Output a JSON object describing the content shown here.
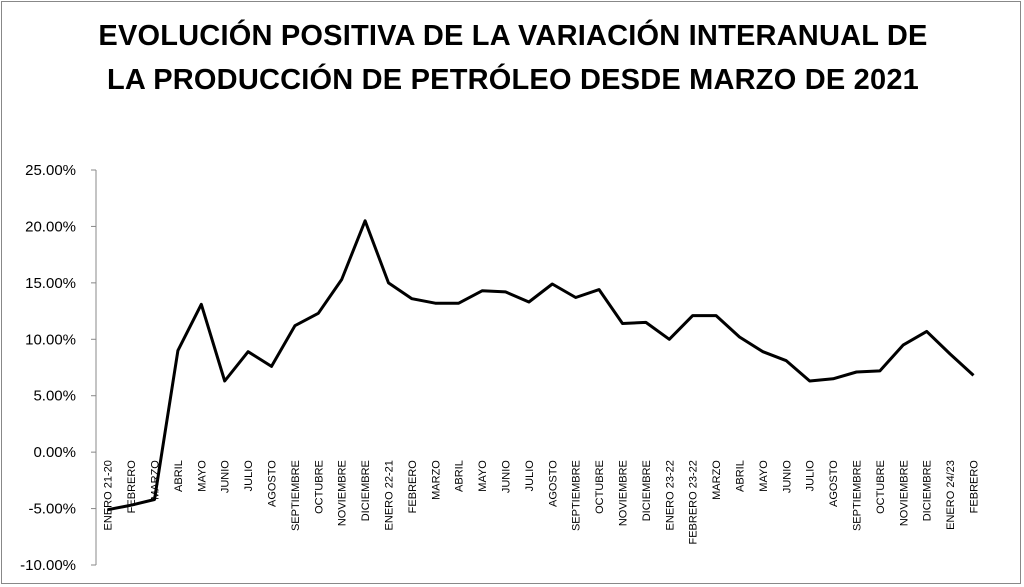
{
  "chart_data": {
    "type": "line",
    "title": "EVOLUCIÓN POSITIVA DE LA VARIACIÓN INTERANUAL DE LA PRODUCCIÓN DE PETRÓLEO DESDE MARZO DE 2021",
    "xlabel": "",
    "ylabel": "",
    "ylim": [
      -10,
      25
    ],
    "y_ticks": [
      "-10.00%",
      "-5.00%",
      "0.00%",
      "5.00%",
      "10.00%",
      "15.00%",
      "20.00%",
      "25.00%"
    ],
    "grid": false,
    "legend": "none",
    "line_color": "#000000",
    "categories": [
      "ENERO 21-20",
      "FEBRERO",
      "MARZO",
      "ABRIL",
      "MAYO",
      "JUNIO",
      "JULIO",
      "AGOSTO",
      "SEPTIEMBRE",
      "OCTUBRE",
      "NOVIEMBRE",
      "DICIEMBRE",
      "ENERO 22-21",
      "FEBRERO",
      "MARZO",
      "ABRIL",
      "MAYO",
      "JUNIO",
      "JULIO",
      "AGOSTO",
      "SEPTIEMBRE",
      "OCTUBRE",
      "NOVIEMBRE",
      "DICIEMBRE",
      "ENERO 23-22",
      "FEBRERO 23-22",
      "MARZO",
      "ABRIL",
      "MAYO",
      "JUNIO",
      "JULIO",
      "AGOSTO",
      "SEPTIEMBRE",
      "OCTUBRE",
      "NOVIEMBRE",
      "DICIEMBRE",
      "ENERO 24/23",
      "FEBRERO"
    ],
    "values": [
      -5.1,
      -4.7,
      -4.2,
      9.0,
      13.1,
      6.3,
      8.9,
      7.6,
      11.2,
      12.3,
      15.3,
      20.5,
      15.0,
      13.6,
      13.2,
      13.2,
      14.3,
      14.2,
      13.3,
      14.9,
      13.7,
      14.4,
      11.4,
      11.5,
      10.0,
      12.1,
      12.1,
      10.2,
      8.9,
      8.1,
      6.3,
      6.5,
      7.1,
      7.2,
      9.5,
      10.7,
      8.7,
      6.8
    ]
  }
}
